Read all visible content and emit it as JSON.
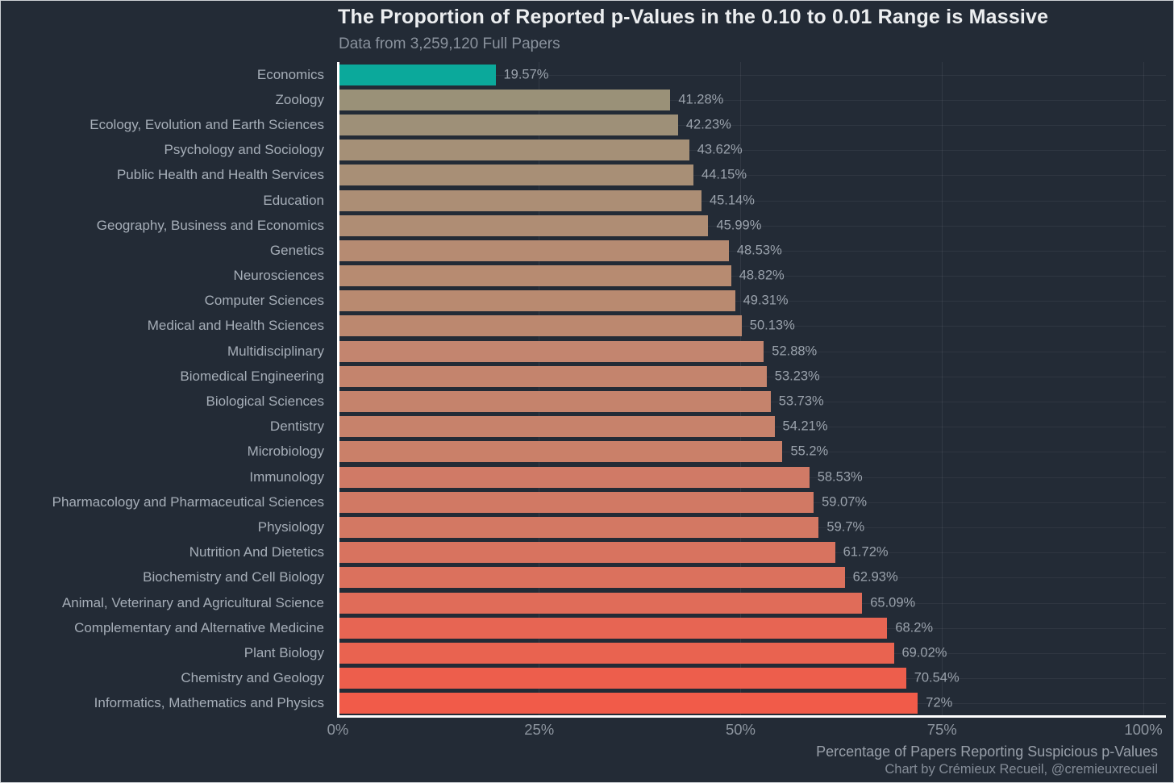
{
  "chart_data": {
    "type": "bar",
    "orientation": "horizontal",
    "title": "The Proportion of Reported p-Values in the 0.10 to 0.01 Range is Massive",
    "subtitle": "Data from 3,259,120 Full Papers",
    "xlabel": "Percentage of Papers Reporting Suspicious p-Values",
    "caption": "Chart by Crémieux Recueil, @cremieuxrecueil",
    "xlim": [
      0,
      100
    ],
    "x_ticks": [
      0,
      25,
      50,
      75,
      100
    ],
    "x_tick_labels": [
      "0%",
      "25%",
      "50%",
      "75%",
      "100%"
    ],
    "grid": true,
    "legend": "none",
    "categories": [
      "Economics",
      "Zoology",
      "Ecology, Evolution and Earth Sciences",
      "Psychology and Sociology",
      "Public Health and Health Services",
      "Education",
      "Geography, Business and Economics",
      "Genetics",
      "Neurosciences",
      "Computer Sciences",
      "Medical and Health Sciences",
      "Multidisciplinary",
      "Biomedical Engineering",
      "Biological Sciences",
      "Dentistry",
      "Microbiology",
      "Immunology",
      "Pharmacology and Pharmaceutical Sciences",
      "Physiology",
      "Nutrition And Dietetics",
      "Biochemistry and Cell Biology",
      "Animal, Veterinary and Agricultural Science",
      "Complementary and Alternative Medicine",
      "Plant Biology",
      "Chemistry and Geology",
      "Informatics, Mathematics and Physics"
    ],
    "values": [
      19.57,
      41.28,
      42.23,
      43.62,
      44.15,
      45.14,
      45.99,
      48.53,
      48.82,
      49.31,
      50.13,
      52.88,
      53.23,
      53.73,
      54.21,
      55.2,
      58.53,
      59.07,
      59.7,
      61.72,
      62.93,
      65.09,
      68.2,
      69.02,
      70.54,
      72
    ],
    "value_labels": [
      "19.57%",
      "41.28%",
      "42.23%",
      "43.62%",
      "44.15%",
      "45.14%",
      "45.99%",
      "48.53%",
      "48.82%",
      "49.31%",
      "50.13%",
      "52.88%",
      "53.23%",
      "53.73%",
      "54.21%",
      "55.2%",
      "58.53%",
      "59.07%",
      "59.7%",
      "61.72%",
      "62.93%",
      "65.09%",
      "68.2%",
      "69.02%",
      "70.54%",
      "72%"
    ],
    "bar_colors": [
      "#0ba99b",
      "#9a9178",
      "#9e9078",
      "#a59077",
      "#a88f76",
      "#ac8e75",
      "#af8d74",
      "#b68b72",
      "#b78b71",
      "#b98a70",
      "#bc886f",
      "#c3856f",
      "#c4846d",
      "#c5836c",
      "#c7826b",
      "#ca8069",
      "#d07a66",
      "#d17964",
      "#d37863",
      "#d8735f",
      "#db715d",
      "#e06c59",
      "#e76553",
      "#e96350",
      "#ed5e4c",
      "#f15b49"
    ],
    "colors": {
      "background": "#232b36",
      "axis_line": "#ffffff",
      "highlight": "#0ba99b",
      "title_text": "#eceef0",
      "subtitle_text": "#8a929d",
      "category_text": "#a6aeb8",
      "value_text": "#9aa2ac",
      "tick_text": "#8d959f"
    }
  }
}
